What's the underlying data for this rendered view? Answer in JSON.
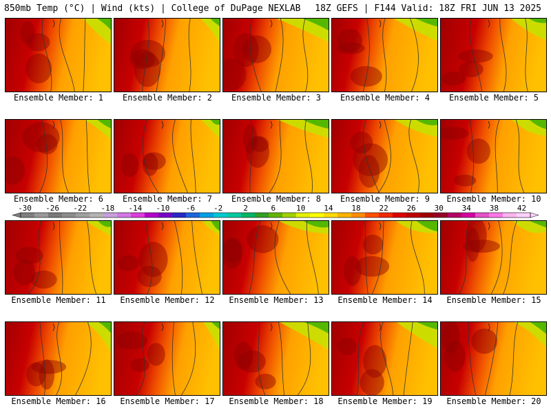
{
  "header": {
    "left": "850mb Temp (°C) | Wind (kts) | College of DuPage NEXLAB",
    "right": "18Z GEFS | F144 Valid: 18Z FRI JUN 13 2025"
  },
  "members": [
    {
      "label": "Ensemble Member: 1"
    },
    {
      "label": "Ensemble Member: 2"
    },
    {
      "label": "Ensemble Member: 3"
    },
    {
      "label": "Ensemble Member: 4"
    },
    {
      "label": "Ensemble Member: 5"
    },
    {
      "label": "Ensemble Member: 6"
    },
    {
      "label": "Ensemble Member: 7"
    },
    {
      "label": "Ensemble Member: 8"
    },
    {
      "label": "Ensemble Member: 9"
    },
    {
      "label": "Ensemble Member: 10"
    },
    {
      "label": "Ensemble Member: 11"
    },
    {
      "label": "Ensemble Member: 12"
    },
    {
      "label": "Ensemble Member: 13"
    },
    {
      "label": "Ensemble Member: 14"
    },
    {
      "label": "Ensemble Member: 15"
    },
    {
      "label": "Ensemble Member: 16"
    },
    {
      "label": "Ensemble Member: 17"
    },
    {
      "label": "Ensemble Member: 18"
    },
    {
      "label": "Ensemble Member: 19"
    },
    {
      "label": "Ensemble Member: 20"
    }
  ],
  "colorbar": {
    "ticks": [
      "-30",
      "-26",
      "-22",
      "-18",
      "-14",
      "-10",
      "-6",
      "-2",
      "2",
      "6",
      "10",
      "14",
      "18",
      "22",
      "26",
      "30",
      "34",
      "38",
      "42"
    ],
    "colors": [
      "#7f7f7f",
      "#999999",
      "#7a7a7a",
      "#8c8c8c",
      "#a0a0a0",
      "#b4b4b4",
      "#c8a0dc",
      "#d278e6",
      "#dc3cdc",
      "#b400c8",
      "#7800c8",
      "#2828c8",
      "#1e64dc",
      "#00a0e6",
      "#00c8d2",
      "#00c8a0",
      "#00b464",
      "#32a028",
      "#64b400",
      "#a0d200",
      "#e6f000",
      "#ffff00",
      "#ffdc00",
      "#ffb400",
      "#ff8c00",
      "#ff5000",
      "#f02800",
      "#dc0000",
      "#be0000",
      "#a00000",
      "#960028",
      "#b40064",
      "#d200a0",
      "#e650c8",
      "#ff78e6",
      "#ffb4f0",
      "#ffd2ff"
    ]
  },
  "colors": {
    "hot": "#a00000",
    "warm": "#f05000",
    "mild": "#ffc000",
    "cool": "#c8e000",
    "cold": "#40b000"
  }
}
